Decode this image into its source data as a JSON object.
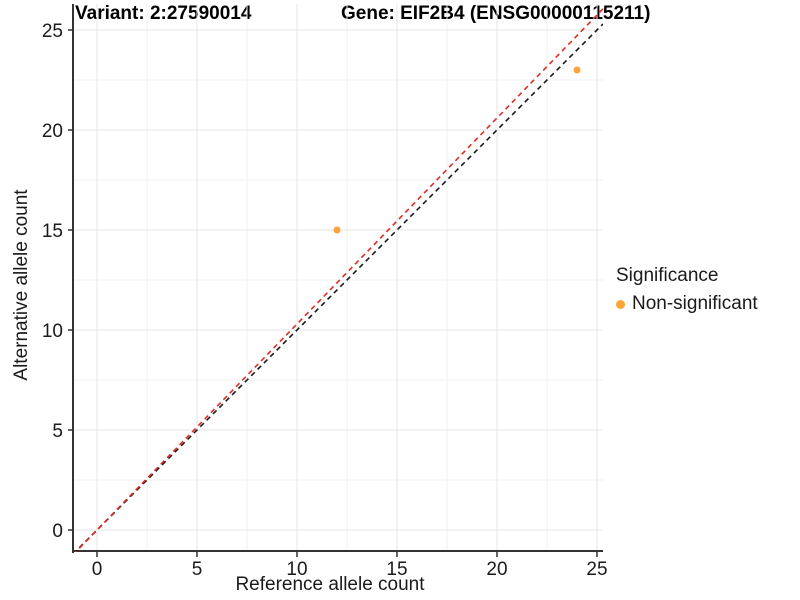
{
  "titles": {
    "variant": "Variant: 2:27590014",
    "gene": "Gene: EIF2B4 (ENSG00000115211)"
  },
  "axes": {
    "x_label": "Reference allele count",
    "y_label": "Alternative allele count"
  },
  "legend": {
    "title": "Significance",
    "items": [
      {
        "label": "Non-significant",
        "color": "#FAA43A"
      }
    ]
  },
  "colors": {
    "background": "#FFFFFF",
    "axis_line": "#333333",
    "tick_label": "#1A1A1A",
    "grid_major": "#E4E4E4",
    "grid_minor": "#F2F2F2",
    "point": "#FAA43A",
    "identity_line": "#1A1A1A",
    "fit_line": "#E02B20"
  },
  "chart_data": {
    "type": "scatter",
    "title": "Variant: 2:27590014 — Gene: EIF2B4 (ENSG00000115211)",
    "xlabel": "Reference allele count",
    "ylabel": "Alternative allele count",
    "x_ticks": [
      0,
      5,
      10,
      15,
      20,
      25
    ],
    "y_ticks": [
      0,
      5,
      10,
      15,
      20,
      25
    ],
    "xlim": [
      -1.2,
      25.3
    ],
    "ylim": [
      -1.1,
      26.3
    ],
    "grid": "major+minor",
    "legend_position": "right",
    "points": [
      {
        "x": 12,
        "y": 15,
        "series": "Non-significant"
      },
      {
        "x": 24,
        "y": 23,
        "series": "Non-significant"
      }
    ],
    "lines": [
      {
        "name": "identity",
        "slope": 1.0,
        "intercept": 0,
        "style": "dashed"
      },
      {
        "name": "fit",
        "slope": 1.03,
        "intercept": 0,
        "style": "dashed"
      }
    ]
  }
}
